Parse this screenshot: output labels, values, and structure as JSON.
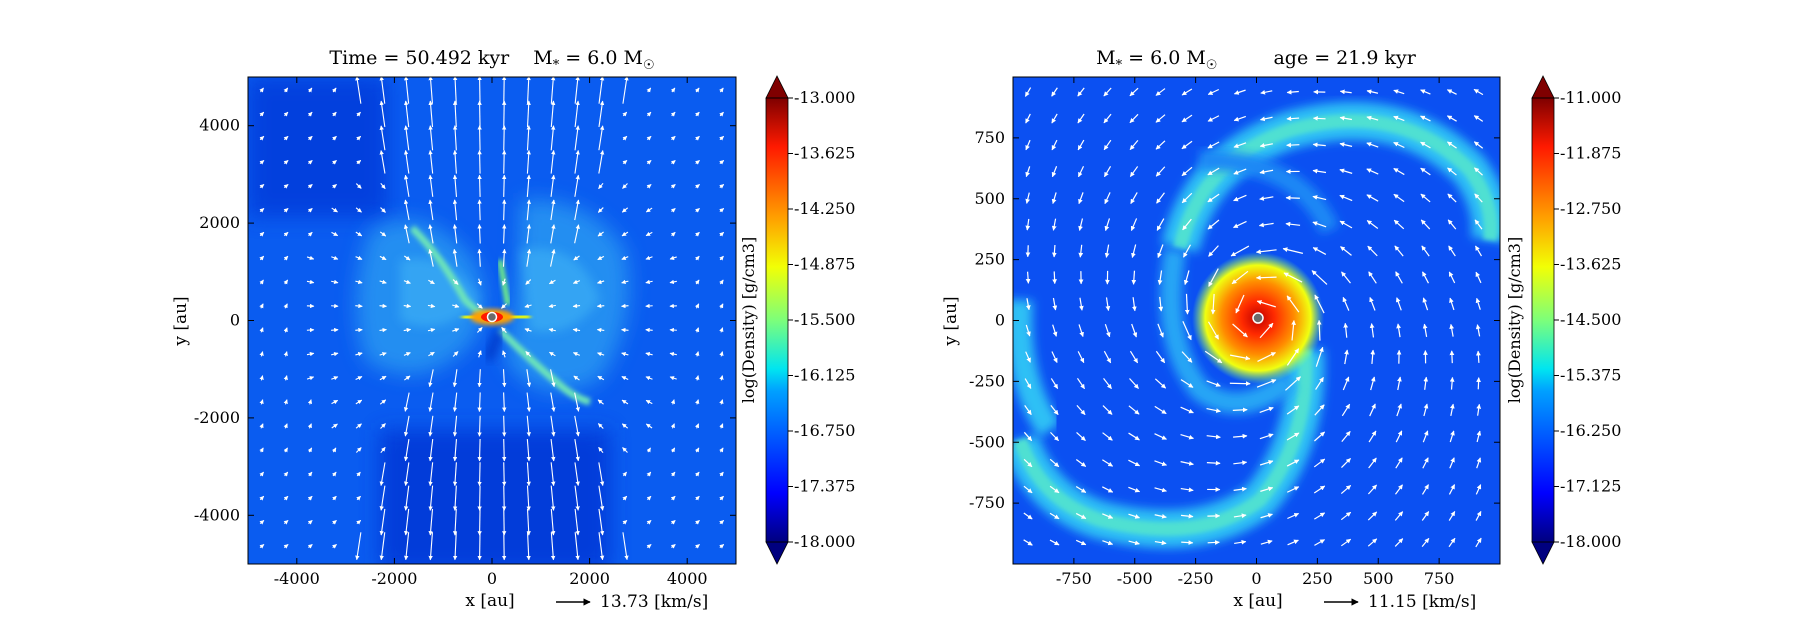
{
  "chart_data": [
    {
      "type": "heatmap",
      "title": "Time = 50.492 kyr    M$_*$ = 6.0 M$_\\odot$",
      "title_parts": {
        "time": "Time = 50.492 kyr",
        "mass": "M",
        "mass_sub": "*",
        "mass_value": " = 6.0 M",
        "mass_unit_sub": "☉"
      },
      "xlabel": "x [au]",
      "ylabel": "y [au]",
      "xlim": [
        -5000,
        5000
      ],
      "ylim": [
        -5000,
        5000
      ],
      "xticks": [
        -4000,
        -2000,
        0,
        2000,
        4000
      ],
      "xtick_labels": [
        "-4000",
        "-2000",
        "0",
        "2000",
        "4000"
      ],
      "yticks": [
        4000,
        2000,
        0,
        -2000,
        -4000
      ],
      "ytick_labels": [
        "4000",
        "2000",
        "0",
        "-2000",
        "-4000"
      ],
      "colorbar": {
        "label": "log(Density) [g/cm3]",
        "range": [
          -18.0,
          -13.0
        ],
        "ticks": [
          -13.0,
          -13.625,
          -14.25,
          -14.875,
          -15.5,
          -16.125,
          -16.75,
          -17.375,
          -18.0
        ],
        "tick_labels": [
          "-13.000",
          "-13.625",
          "-14.250",
          "-14.875",
          "-15.500",
          "-16.125",
          "-16.750",
          "-17.375",
          "-18.000"
        ]
      },
      "velocity_key": {
        "label": "13.73 [km/s]"
      },
      "structure": "bipolar outflow cavity with dense filaments and central sink",
      "colormap": "jet"
    },
    {
      "type": "heatmap",
      "title_parts": {
        "mass": "M",
        "mass_sub": "*",
        "mass_value": " = 6.0 M",
        "mass_unit_sub": "☉",
        "age": "age = 21.9 kyr"
      },
      "xlabel": "x [au]",
      "ylabel": "y [au]",
      "xlim": [
        -1000,
        1000
      ],
      "ylim": [
        -1000,
        1000
      ],
      "xticks": [
        -750,
        -500,
        -250,
        0,
        250,
        500,
        750
      ],
      "xtick_labels": [
        "-750",
        "-500",
        "-250",
        "0",
        "250",
        "500",
        "750"
      ],
      "yticks": [
        750,
        500,
        250,
        0,
        -250,
        -500,
        -750
      ],
      "ytick_labels": [
        "750",
        "500",
        "250",
        "0",
        "-250",
        "-500",
        "-750"
      ],
      "colorbar": {
        "label": "log(Density) [g/cm3]",
        "range": [
          -18.0,
          -11.0
        ],
        "ticks": [
          -11.0,
          -11.875,
          -12.75,
          -13.625,
          -14.5,
          -15.375,
          -16.25,
          -17.125,
          -18.0
        ],
        "tick_labels": [
          "-11.000",
          "-11.875",
          "-12.750",
          "-13.625",
          "-14.500",
          "-15.375",
          "-16.250",
          "-17.125",
          "-18.000"
        ]
      },
      "velocity_key": {
        "label": "11.15 [km/s]"
      },
      "structure": "spiral accretion disk with dense central core",
      "colormap": "jet"
    }
  ]
}
